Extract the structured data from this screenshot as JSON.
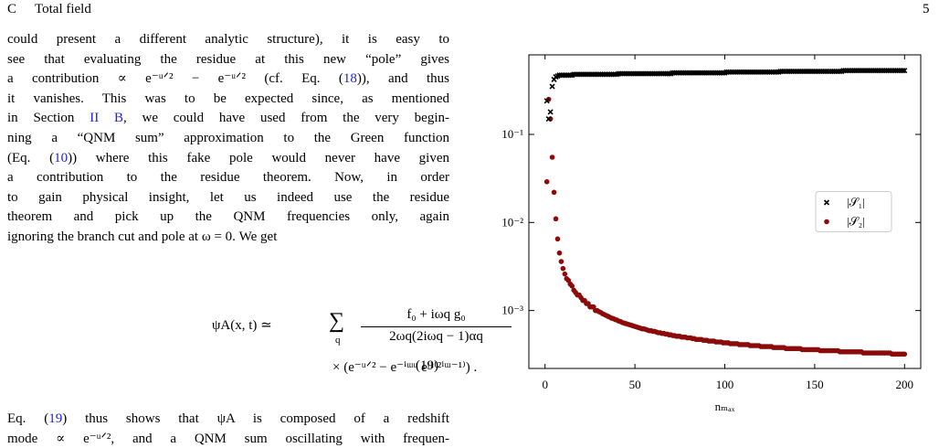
{
  "header": {
    "section": "C",
    "title": "Total field",
    "page": "5"
  },
  "paragraph": {
    "lines": [
      [
        "could present a different analytic structure), it is easy to"
      ],
      [
        "see that evaluating the residue at this new “pole” gives"
      ],
      [
        "a contribution ∝ e⁻ᵘᐟ² − e⁻ᵘᐟ² (cf. Eq. (",
        {
          "text": "18",
          "color": "#2222dd"
        },
        ")), and thus"
      ],
      [
        "it vanishes. This was to be expected since, as mentioned"
      ],
      [
        "in Section ",
        {
          "text": "II B",
          "color": "#2222dd"
        },
        ", we could have used from the very begin-"
      ],
      [
        "ning a “QNM sum” approximation to the Green function"
      ],
      [
        "(Eq. (",
        {
          "text": "10",
          "color": "#2222dd"
        },
        ")) where this fake pole would never have given"
      ],
      [
        "a contribution to the residue theorem.  Now, in order"
      ],
      [
        "to gain physical insight, let us indeed use the residue"
      ],
      [
        "theorem and pick up the QNM frequencies only, again"
      ],
      [
        "ignoring the branch cut and pole at ω = 0. We get"
      ]
    ]
  },
  "equation": {
    "lhs": "ψA(x, t) ≃",
    "sum": "∑",
    "index": "q",
    "numerator": "f₀ + iωq g₀",
    "denominator": "2ωq(2iωq − 1)αq",
    "second_line": "× (e⁻ᵘᐟ² − e⁻ⁱᵚᵘ eᵗ¹⁽²ⁱᵚ⁻¹⁾) .",
    "number": "(19)"
  },
  "paragraph2": {
    "lines": [
      [
        "Eq. (",
        {
          "text": "19",
          "color": "#2222dd"
        },
        ") thus shows that ψA is composed of a redshift"
      ],
      [
        "mode ∝ e⁻ᵘᐟ², and a QNM sum oscillating with frequen-"
      ]
    ]
  },
  "chart_data": {
    "type": "scatter",
    "x_label": "nₘₐₓ",
    "log_y": true,
    "legend": "center right",
    "xlim": [
      -9,
      209
    ],
    "xticks": [
      0,
      50,
      100,
      150,
      200
    ],
    "ylim": [
      0.00022,
      0.8
    ],
    "yticks": [
      {
        "value": 0.001,
        "label": "10⁻³"
      },
      {
        "value": 0.01,
        "label": "10⁻²"
      },
      {
        "value": 0.1,
        "label": "10⁻¹"
      }
    ],
    "x": [
      1,
      2,
      3,
      4,
      5,
      6,
      7,
      8,
      9,
      10,
      11,
      12,
      13,
      14,
      15,
      16,
      17,
      18,
      19,
      20,
      21,
      22,
      23,
      24,
      25,
      26,
      27,
      28,
      29,
      30,
      31,
      32,
      33,
      34,
      35,
      36,
      37,
      38,
      39,
      40,
      41,
      42,
      43,
      44,
      45,
      46,
      47,
      48,
      49,
      50,
      51,
      52,
      53,
      54,
      55,
      56,
      57,
      58,
      59,
      60,
      61,
      62,
      63,
      64,
      65,
      66,
      67,
      68,
      69,
      70,
      71,
      72,
      73,
      74,
      75,
      76,
      77,
      78,
      79,
      80,
      81,
      82,
      83,
      84,
      85,
      86,
      87,
      88,
      89,
      90,
      91,
      92,
      93,
      94,
      95,
      96,
      97,
      98,
      99,
      100,
      101,
      102,
      103,
      104,
      105,
      106,
      107,
      108,
      109,
      110,
      111,
      112,
      113,
      114,
      115,
      116,
      117,
      118,
      119,
      120,
      121,
      122,
      123,
      124,
      125,
      126,
      127,
      128,
      129,
      130,
      131,
      132,
      133,
      134,
      135,
      136,
      137,
      138,
      139,
      140,
      141,
      142,
      143,
      144,
      145,
      146,
      147,
      148,
      149,
      150,
      151,
      152,
      153,
      154,
      155,
      156,
      157,
      158,
      159,
      160,
      161,
      162,
      163,
      164,
      165,
      166,
      167,
      168,
      169,
      170,
      171,
      172,
      173,
      174,
      175,
      176,
      177,
      178,
      179,
      180,
      181,
      182,
      183,
      184,
      185,
      186,
      187,
      188,
      189,
      190,
      191,
      192,
      193,
      194,
      195,
      196,
      197,
      198,
      199,
      200
    ],
    "series": [
      {
        "name": "|𝒮₁|",
        "color": "#000000",
        "marker": "x",
        "values": [
          0.24,
          0.15,
          0.18,
          0.35,
          0.42,
          0.45,
          0.46,
          0.47,
          0.47,
          0.47,
          0.47,
          0.47,
          0.47,
          0.47,
          0.47,
          0.48,
          0.48,
          0.48,
          0.48,
          0.48,
          0.48,
          0.48,
          0.48,
          0.48,
          0.48,
          0.48,
          0.48,
          0.48,
          0.48,
          0.48,
          0.48,
          0.48,
          0.48,
          0.48,
          0.48,
          0.48,
          0.48,
          0.48,
          0.48,
          0.48,
          0.49,
          0.49,
          0.49,
          0.49,
          0.49,
          0.49,
          0.49,
          0.49,
          0.49,
          0.49,
          0.49,
          0.49,
          0.49,
          0.49,
          0.49,
          0.49,
          0.49,
          0.49,
          0.49,
          0.49,
          0.49,
          0.49,
          0.49,
          0.49,
          0.49,
          0.49,
          0.49,
          0.49,
          0.49,
          0.49,
          0.5,
          0.5,
          0.5,
          0.5,
          0.5,
          0.5,
          0.5,
          0.5,
          0.5,
          0.5,
          0.5,
          0.5,
          0.5,
          0.5,
          0.5,
          0.5,
          0.5,
          0.5,
          0.5,
          0.5,
          0.5,
          0.5,
          0.5,
          0.5,
          0.5,
          0.5,
          0.5,
          0.5,
          0.5,
          0.5,
          0.51,
          0.51,
          0.51,
          0.51,
          0.51,
          0.51,
          0.51,
          0.51,
          0.51,
          0.51,
          0.51,
          0.51,
          0.51,
          0.51,
          0.51,
          0.51,
          0.51,
          0.51,
          0.51,
          0.51,
          0.51,
          0.51,
          0.51,
          0.51,
          0.51,
          0.51,
          0.51,
          0.51,
          0.51,
          0.51,
          0.52,
          0.52,
          0.52,
          0.52,
          0.52,
          0.52,
          0.52,
          0.52,
          0.52,
          0.52,
          0.52,
          0.52,
          0.52,
          0.52,
          0.52,
          0.52,
          0.52,
          0.52,
          0.52,
          0.52,
          0.52,
          0.52,
          0.52,
          0.52,
          0.52,
          0.52,
          0.52,
          0.52,
          0.52,
          0.52,
          0.52,
          0.52,
          0.52,
          0.52,
          0.52,
          0.53,
          0.53,
          0.53,
          0.53,
          0.53,
          0.53,
          0.53,
          0.53,
          0.53,
          0.53,
          0.53,
          0.53,
          0.53,
          0.53,
          0.53,
          0.53,
          0.53,
          0.53,
          0.53,
          0.53,
          0.53,
          0.53,
          0.53,
          0.53,
          0.53,
          0.53,
          0.53,
          0.53,
          0.53,
          0.53,
          0.53,
          0.53,
          0.53,
          0.53,
          0.53
        ]
      },
      {
        "name": "|𝒮₂|",
        "color": "#8b0a0a",
        "marker": "o",
        "values": [
          0.029,
          0.25,
          0.15,
          0.055,
          0.022,
          0.011,
          0.0065,
          0.0045,
          0.0036,
          0.003,
          0.0026,
          0.0023,
          0.0022,
          0.002,
          0.0019,
          0.0017,
          0.0016,
          0.0015,
          0.0015,
          0.0014,
          0.0013,
          0.0013,
          0.0012,
          0.0012,
          0.0011,
          0.0011,
          0.0011,
          0.001,
          0.001,
          0.00097,
          0.00095,
          0.00092,
          0.0009,
          0.00088,
          0.00086,
          0.00084,
          0.00082,
          0.00081,
          0.00079,
          0.00078,
          0.00076,
          0.00075,
          0.00073,
          0.00072,
          0.00071,
          0.0007,
          0.00069,
          0.00068,
          0.00067,
          0.00066,
          0.00065,
          0.00064,
          0.00063,
          0.00062,
          0.00062,
          0.00061,
          0.0006,
          0.00059,
          0.00059,
          0.00058,
          0.00058,
          0.00057,
          0.00056,
          0.00056,
          0.00055,
          0.00055,
          0.00054,
          0.00054,
          0.00053,
          0.00053,
          0.00052,
          0.00052,
          0.00051,
          0.00051,
          0.00051,
          0.0005,
          0.0005,
          0.0005,
          0.00049,
          0.00049,
          0.00049,
          0.00048,
          0.00048,
          0.00047,
          0.00047,
          0.00047,
          0.00047,
          0.00046,
          0.00046,
          0.00046,
          0.00045,
          0.00045,
          0.00045,
          0.00045,
          0.00044,
          0.00044,
          0.00044,
          0.00044,
          0.00043,
          0.00043,
          0.00043,
          0.00043,
          0.00042,
          0.00042,
          0.00042,
          0.00042,
          0.00042,
          0.00041,
          0.00041,
          0.00041,
          0.00041,
          0.00041,
          0.00041,
          0.0004,
          0.0004,
          0.0004,
          0.0004,
          0.0004,
          0.0004,
          0.00039,
          0.00039,
          0.00039,
          0.00039,
          0.00039,
          0.00039,
          0.00039,
          0.00038,
          0.00038,
          0.00038,
          0.00038,
          0.00038,
          0.00038,
          0.00038,
          0.00037,
          0.00037,
          0.00037,
          0.00037,
          0.00037,
          0.00037,
          0.00037,
          0.00037,
          0.00037,
          0.00036,
          0.00036,
          0.00036,
          0.00036,
          0.00036,
          0.00036,
          0.00036,
          0.00036,
          0.00036,
          0.00036,
          0.00035,
          0.00035,
          0.00035,
          0.00035,
          0.00035,
          0.00035,
          0.00035,
          0.00035,
          0.00035,
          0.00035,
          0.00035,
          0.00034,
          0.00034,
          0.00034,
          0.00034,
          0.00034,
          0.00034,
          0.00034,
          0.00034,
          0.00034,
          0.00034,
          0.00034,
          0.00034,
          0.00034,
          0.00033,
          0.00033,
          0.00033,
          0.00033,
          0.00033,
          0.00033,
          0.00033,
          0.00033,
          0.00033,
          0.00033,
          0.00033,
          0.00033,
          0.00033,
          0.00033,
          0.00033,
          0.00033,
          0.00032,
          0.00032,
          0.00032,
          0.00032,
          0.00032,
          0.00032,
          0.00032,
          0.00032
        ]
      }
    ]
  }
}
